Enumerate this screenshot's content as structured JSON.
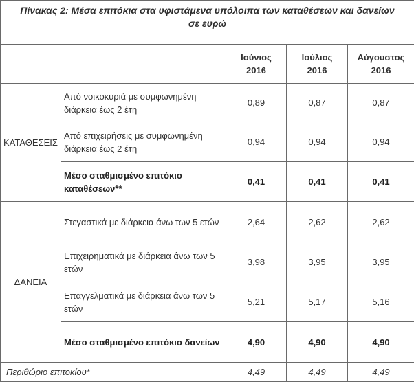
{
  "table": {
    "title": "Πίνακας 2: Μέσα επιτόκια στα υφιστάμενα υπόλοιπα των καταθέσεων και δανείων σε ευρώ",
    "columns": [
      {
        "month": "Ιούνιος",
        "year": "2016"
      },
      {
        "month": "Ιούλιος",
        "year": "2016"
      },
      {
        "month": "Αύγουστος",
        "year": "2016"
      }
    ],
    "groups": [
      {
        "label": "ΚΑΤΑΘΕΣΕΙΣ",
        "rows": [
          {
            "label": "Από νοικοκυριά με συμφωνημένη διάρκεια έως 2 έτη",
            "values": [
              "0,89",
              "0,87",
              "0,87"
            ]
          },
          {
            "label": "Από επιχειρήσεις με συμφωνημένη διάρκεια έως 2 έτη",
            "values": [
              "0,94",
              "0,94",
              "0,94"
            ]
          },
          {
            "label": "Μέσο σταθμισμένο επιτόκιο καταθέσεων**",
            "values": [
              "0,41",
              "0,41",
              "0,41"
            ]
          }
        ]
      },
      {
        "label": "ΔΑΝΕΙΑ",
        "rows": [
          {
            "label": "Στεγαστικά με διάρκεια άνω των 5 ετών",
            "values": [
              "2,64",
              "2,62",
              "2,62"
            ]
          },
          {
            "label": "Επιχειρηματικά με διάρκεια άνω των 5 ετών",
            "values": [
              "3,98",
              "3,95",
              "3,95"
            ]
          },
          {
            "label": "Επαγγελματικά με διάρκεια άνω των 5 ετών",
            "values": [
              "5,21",
              "5,17",
              "5,16"
            ]
          },
          {
            "label": "Μέσο σταθμισμένο επιτόκιο δανείων",
            "values": [
              "4,90",
              "4,90",
              "4,90"
            ]
          }
        ]
      }
    ],
    "footer": {
      "label": "Περιθώριο επιτοκίου*",
      "values": [
        "4,49",
        "4,49",
        "4,49"
      ]
    }
  }
}
